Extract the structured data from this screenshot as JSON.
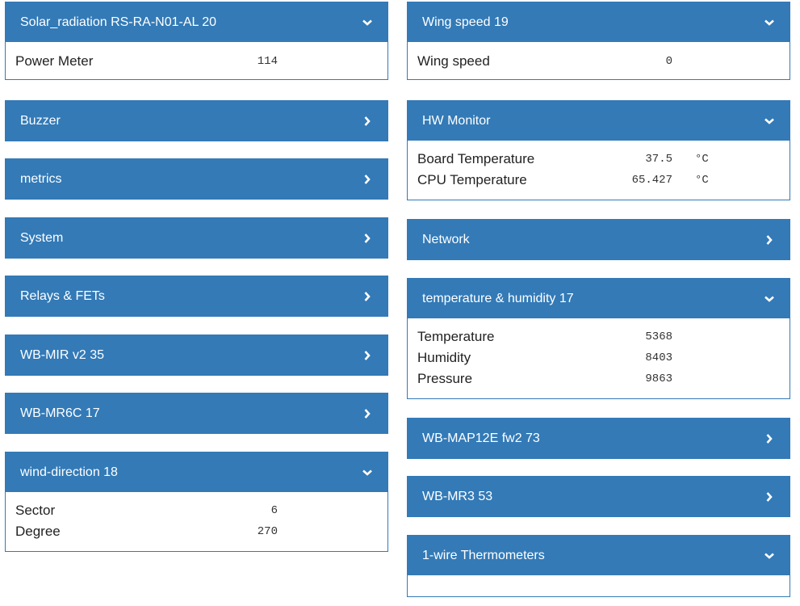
{
  "left": {
    "solar": {
      "title": "Solar_radiation RS-RA-N01-AL 20",
      "rows": [
        {
          "label": "Power Meter",
          "value": "114"
        }
      ]
    },
    "buzzer": {
      "title": "Buzzer"
    },
    "metrics": {
      "title": "metrics"
    },
    "system": {
      "title": "System"
    },
    "relays": {
      "title": "Relays & FETs"
    },
    "wbmir": {
      "title": "WB-MIR v2 35"
    },
    "wbmr6c": {
      "title": "WB-MR6C 17"
    },
    "wind": {
      "title": "wind-direction 18",
      "rows": [
        {
          "label": "Sector",
          "value": "6"
        },
        {
          "label": "Degree",
          "value": "270"
        }
      ]
    }
  },
  "right": {
    "wing": {
      "title": "Wing speed 19",
      "rows": [
        {
          "label": "Wing speed",
          "value": "0"
        }
      ]
    },
    "hw": {
      "title": "HW Monitor",
      "rows": [
        {
          "label": "Board Temperature",
          "value": "37.5",
          "unit": "°C"
        },
        {
          "label": "CPU Temperature",
          "value": "65.427",
          "unit": "°C"
        }
      ]
    },
    "network": {
      "title": "Network"
    },
    "th": {
      "title": "temperature & humidity 17",
      "rows": [
        {
          "label": "Temperature",
          "value": "5368"
        },
        {
          "label": "Humidity",
          "value": "8403"
        },
        {
          "label": "Pressure",
          "value": "9863"
        }
      ]
    },
    "map12e": {
      "title": "WB-MAP12E fw2 73"
    },
    "mr3": {
      "title": "WB-MR3 53"
    },
    "onewire": {
      "title": "1-wire Thermometers"
    }
  },
  "icons": {
    "expanded": "chevron-down-icon",
    "collapsed": "chevron-right-icon"
  },
  "colors": {
    "panel_header": "#337ab7",
    "panel_border": "#337ab7",
    "header_text": "#ffffff"
  }
}
